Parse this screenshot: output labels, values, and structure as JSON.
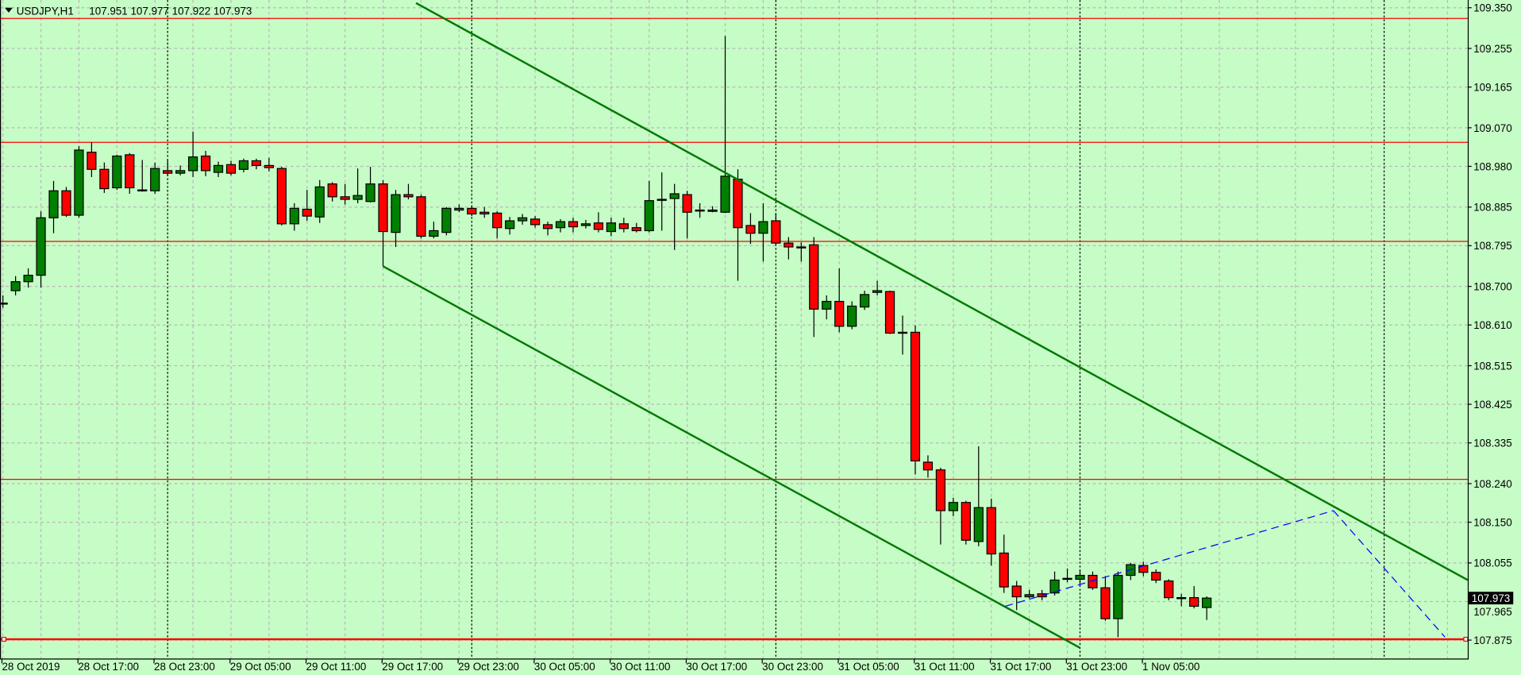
{
  "header": {
    "symbol_label": "USDJPY,H1",
    "ohlc_text": "107.951 107.977 107.922 107.973",
    "menu_icon": "triangle-down-icon"
  },
  "colors": {
    "background": "#c6fcc6",
    "bull": "#008000",
    "bear": "#ff0000",
    "outline": "#000000",
    "grid": "#b8b8b8",
    "level_line": "#ff0000",
    "channel": "#007800",
    "dashed_trend": "#0000ff",
    "price_box": "#000000"
  },
  "chart_data": {
    "type": "candlestick",
    "title": "USDJPY,H1",
    "timeframe": "H1",
    "grid": true,
    "ylim": [
      107.832,
      109.368
    ],
    "start_time": "28 Oct 11:00",
    "x_tick_labels": [
      "28 Oct 2019",
      "28 Oct 17:00",
      "28 Oct 23:00",
      "29 Oct 05:00",
      "29 Oct 11:00",
      "29 Oct 17:00",
      "29 Oct 23:00",
      "30 Oct 05:00",
      "30 Oct 11:00",
      "30 Oct 17:00",
      "30 Oct 23:00",
      "31 Oct 05:00",
      "31 Oct 11:00",
      "31 Oct 17:00",
      "31 Oct 23:00",
      "1 Nov 05:00"
    ],
    "x_tick_candle_index": [
      0,
      6,
      12,
      18,
      24,
      30,
      36,
      42,
      48,
      54,
      60,
      66,
      72,
      78,
      84,
      90
    ],
    "day_separator_candle_index": [
      13,
      37,
      61,
      85,
      109
    ],
    "y_tick_labels": [
      "109.350",
      "109.255",
      "109.165",
      "109.070",
      "108.980",
      "108.885",
      "108.795",
      "108.700",
      "108.610",
      "108.515",
      "108.425",
      "108.335",
      "108.240",
      "108.150",
      "108.055",
      "107.965",
      "107.875"
    ],
    "current_price": "107.973",
    "horizontal_levels": [
      109.325,
      109.036,
      108.805,
      108.25,
      107.877
    ],
    "support_level": "107.875",
    "trendlines": [
      {
        "kind": "channel-upper",
        "points": [
          [
            32.6,
            109.361
          ],
          [
            115.6,
            108.015
          ]
        ]
      },
      {
        "kind": "channel-lower",
        "points": [
          [
            30.0,
            108.747
          ],
          [
            85.0,
            107.857
          ]
        ]
      },
      {
        "kind": "dashed",
        "points": [
          [
            79.1,
            107.954
          ],
          [
            105.0,
            108.177
          ]
        ]
      },
      {
        "kind": "dashed",
        "points": [
          [
            105.0,
            108.177
          ],
          [
            113.8,
            107.882
          ]
        ]
      }
    ],
    "candles_ohlc": [
      [
        108.661,
        108.679,
        108.65,
        108.661
      ],
      [
        108.69,
        108.724,
        108.679,
        108.711
      ],
      [
        108.711,
        108.742,
        108.697,
        108.726
      ],
      [
        108.726,
        108.875,
        108.697,
        108.86
      ],
      [
        108.86,
        108.946,
        108.824,
        108.923
      ],
      [
        108.923,
        108.932,
        108.862,
        108.866
      ],
      [
        108.866,
        109.027,
        108.86,
        109.018
      ],
      [
        109.013,
        109.036,
        108.955,
        108.973
      ],
      [
        108.973,
        108.989,
        108.918,
        108.928
      ],
      [
        108.93,
        109.007,
        108.925,
        109.004
      ],
      [
        109.007,
        109.011,
        108.916,
        108.93
      ],
      [
        108.923,
        108.995,
        108.921,
        108.925
      ],
      [
        108.923,
        108.989,
        108.916,
        108.975
      ],
      [
        108.97,
        108.995,
        108.959,
        108.964
      ],
      [
        108.964,
        108.982,
        108.959,
        108.97
      ],
      [
        108.97,
        109.061,
        108.955,
        109.002
      ],
      [
        109.004,
        109.016,
        108.957,
        108.97
      ],
      [
        108.966,
        108.991,
        108.955,
        108.982
      ],
      [
        108.984,
        108.993,
        108.959,
        108.964
      ],
      [
        108.973,
        108.998,
        108.966,
        108.993
      ],
      [
        108.993,
        108.998,
        108.973,
        108.982
      ],
      [
        108.982,
        109.0,
        108.968,
        108.977
      ],
      [
        108.975,
        108.979,
        108.842,
        108.846
      ],
      [
        108.846,
        108.894,
        108.83,
        108.882
      ],
      [
        108.88,
        108.925,
        108.853,
        108.864
      ],
      [
        108.862,
        108.948,
        108.848,
        108.932
      ],
      [
        108.939,
        108.943,
        108.898,
        108.909
      ],
      [
        108.909,
        108.939,
        108.891,
        108.903
      ],
      [
        108.903,
        108.975,
        108.894,
        108.912
      ],
      [
        108.898,
        108.979,
        108.896,
        108.939
      ],
      [
        108.939,
        108.948,
        108.747,
        108.828
      ],
      [
        108.826,
        108.925,
        108.792,
        108.914
      ],
      [
        108.914,
        108.939,
        108.903,
        108.909
      ],
      [
        108.909,
        108.914,
        108.812,
        108.817
      ],
      [
        108.817,
        108.851,
        108.812,
        108.83
      ],
      [
        108.826,
        108.885,
        108.819,
        108.882
      ],
      [
        108.878,
        108.891,
        108.873,
        108.882
      ],
      [
        108.882,
        108.887,
        108.864,
        108.869
      ],
      [
        108.873,
        108.885,
        108.86,
        108.869
      ],
      [
        108.871,
        108.875,
        108.812,
        108.837
      ],
      [
        108.835,
        108.862,
        108.821,
        108.853
      ],
      [
        108.853,
        108.869,
        108.844,
        108.86
      ],
      [
        108.857,
        108.864,
        108.837,
        108.844
      ],
      [
        108.844,
        108.851,
        108.819,
        108.835
      ],
      [
        108.837,
        108.857,
        108.826,
        108.851
      ],
      [
        108.851,
        108.86,
        108.826,
        108.839
      ],
      [
        108.842,
        108.855,
        108.835,
        108.846
      ],
      [
        108.848,
        108.873,
        108.826,
        108.833
      ],
      [
        108.828,
        108.86,
        108.817,
        108.848
      ],
      [
        108.846,
        108.86,
        108.826,
        108.835
      ],
      [
        108.837,
        108.848,
        108.826,
        108.83
      ],
      [
        108.83,
        108.946,
        108.826,
        108.9
      ],
      [
        108.903,
        108.966,
        108.83,
        108.903
      ],
      [
        108.905,
        108.939,
        108.785,
        108.916
      ],
      [
        108.914,
        108.923,
        108.812,
        108.873
      ],
      [
        108.878,
        108.894,
        108.86,
        108.878
      ],
      [
        108.875,
        108.887,
        108.873,
        108.878
      ],
      [
        108.873,
        109.284,
        108.871,
        108.957
      ],
      [
        108.95,
        108.973,
        108.713,
        108.837
      ],
      [
        108.842,
        108.871,
        108.799,
        108.824
      ],
      [
        108.824,
        108.894,
        108.758,
        108.851
      ],
      [
        108.853,
        108.871,
        108.797,
        108.801
      ],
      [
        108.801,
        108.815,
        108.763,
        108.792
      ],
      [
        108.792,
        108.803,
        108.758,
        108.79
      ],
      [
        108.797,
        108.815,
        108.582,
        108.647
      ],
      [
        108.647,
        108.679,
        108.623,
        108.665
      ],
      [
        108.665,
        108.742,
        108.593,
        108.607
      ],
      [
        108.607,
        108.665,
        108.6,
        108.654
      ],
      [
        108.652,
        108.69,
        108.645,
        108.681
      ],
      [
        108.686,
        108.713,
        108.679,
        108.69
      ],
      [
        108.688,
        108.69,
        108.589,
        108.591
      ],
      [
        108.593,
        108.632,
        108.541,
        108.593
      ],
      [
        108.593,
        108.609,
        108.261,
        108.293
      ],
      [
        108.29,
        108.306,
        108.254,
        108.272
      ],
      [
        108.272,
        108.277,
        108.098,
        108.177
      ],
      [
        108.177,
        108.207,
        108.164,
        108.196
      ],
      [
        108.196,
        108.2,
        108.098,
        108.108
      ],
      [
        108.105,
        108.327,
        108.094,
        108.184
      ],
      [
        108.184,
        108.205,
        108.049,
        108.076
      ],
      [
        108.078,
        108.121,
        107.985,
        107.999
      ],
      [
        108.001,
        108.013,
        107.945,
        107.976
      ],
      [
        107.976,
        107.992,
        107.972,
        107.981
      ],
      [
        107.983,
        107.992,
        107.968,
        107.976
      ],
      [
        107.985,
        108.035,
        107.979,
        108.015
      ],
      [
        108.017,
        108.042,
        108.01,
        108.019
      ],
      [
        108.017,
        108.04,
        108.006,
        108.026
      ],
      [
        108.026,
        108.035,
        107.992,
        107.997
      ],
      [
        107.997,
        108.024,
        107.92,
        107.925
      ],
      [
        107.925,
        108.035,
        107.882,
        108.026
      ],
      [
        108.026,
        108.055,
        108.015,
        108.051
      ],
      [
        108.049,
        108.058,
        108.024,
        108.033
      ],
      [
        108.033,
        108.04,
        108.008,
        108.015
      ],
      [
        108.013,
        108.017,
        107.968,
        107.974
      ],
      [
        107.974,
        107.983,
        107.954,
        107.972
      ],
      [
        107.974,
        108.001,
        107.949,
        107.954
      ],
      [
        107.951,
        107.977,
        107.922,
        107.973
      ]
    ]
  }
}
